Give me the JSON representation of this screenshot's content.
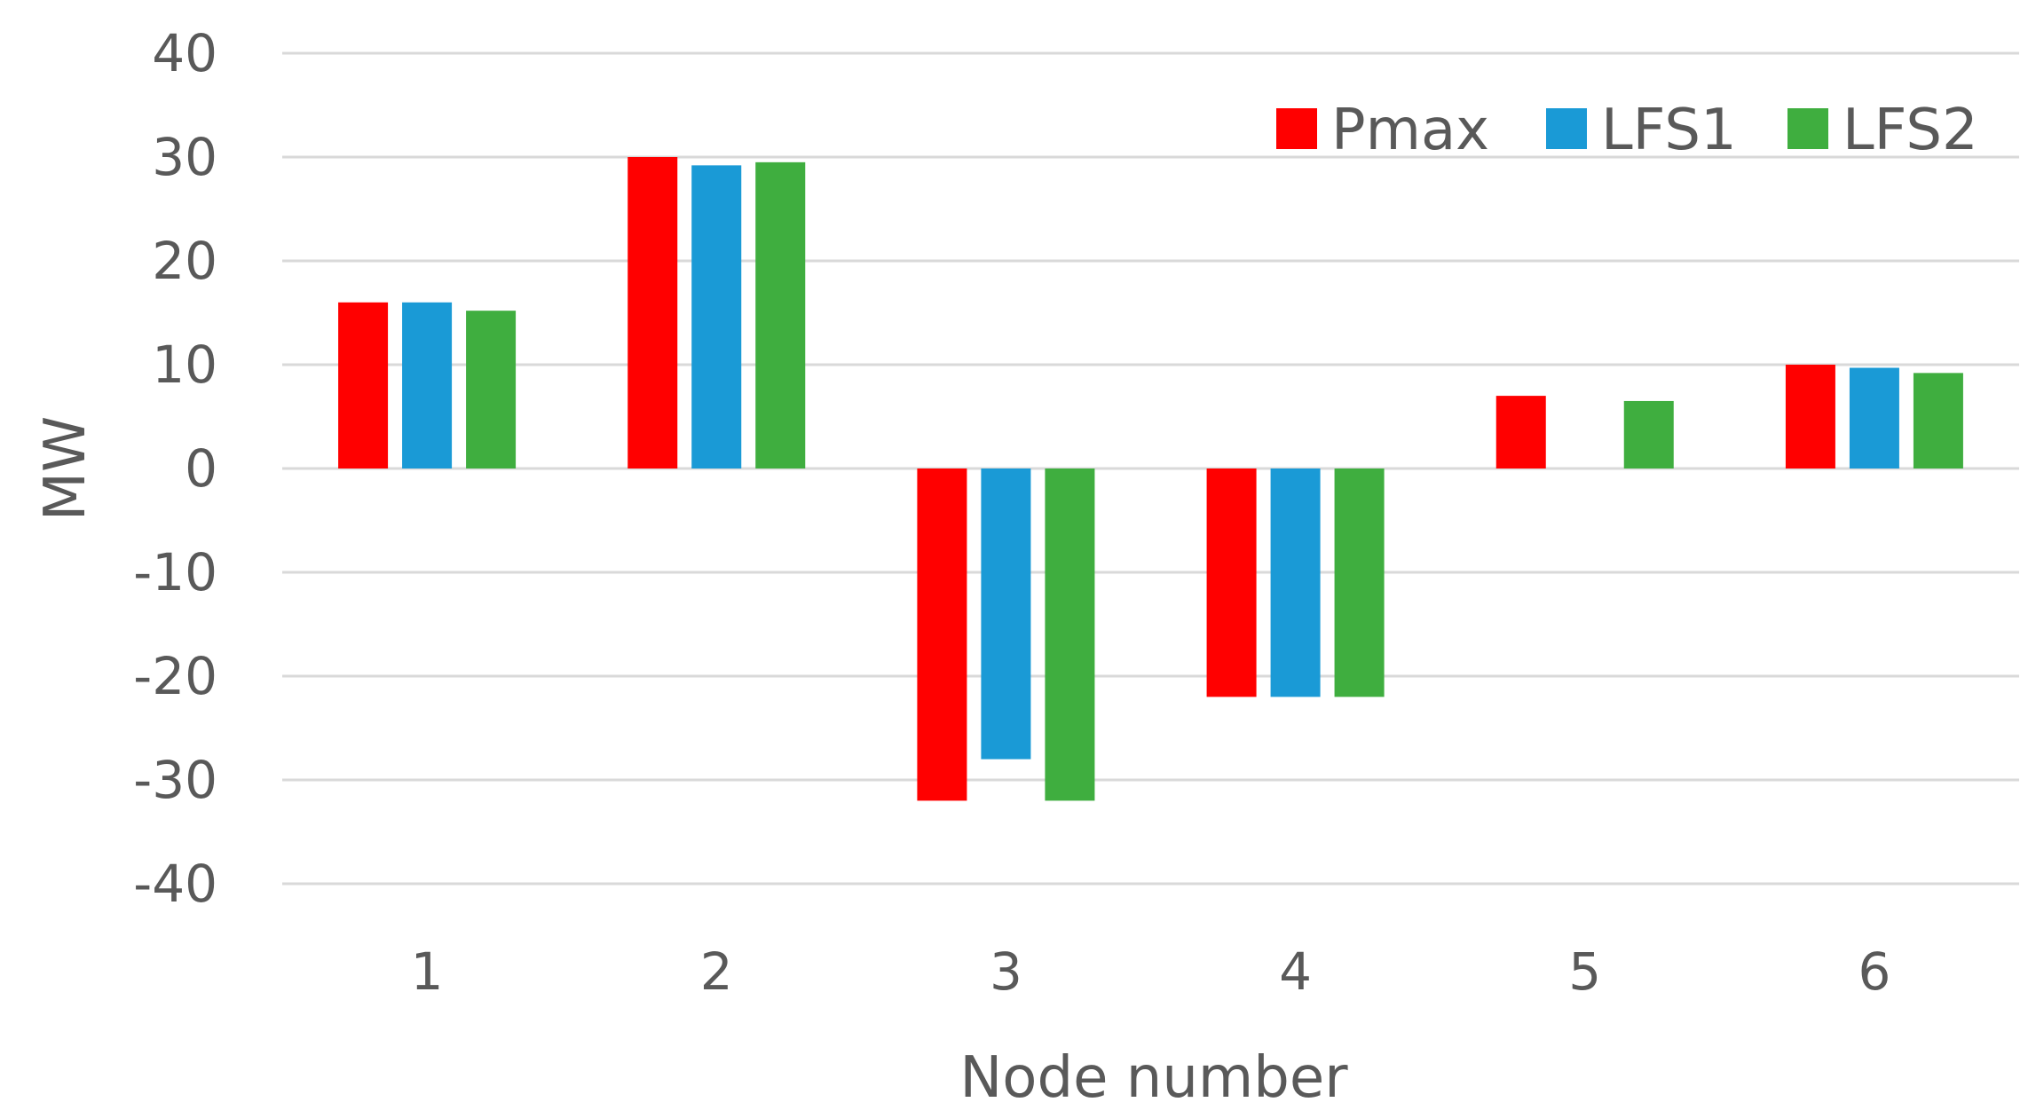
{
  "chart_data": {
    "type": "bar",
    "title": "",
    "xlabel": "Node number",
    "ylabel": "MW",
    "categories": [
      "1",
      "2",
      "3",
      "4",
      "5",
      "6"
    ],
    "series": [
      {
        "name": "Pmax",
        "color": "#ff0000",
        "values": [
          16,
          30,
          -32,
          -22,
          7,
          10
        ]
      },
      {
        "name": "LFS1",
        "color": "#1a9ad6",
        "values": [
          16,
          29.2,
          -28,
          -22,
          0,
          9.7
        ]
      },
      {
        "name": "LFS2",
        "color": "#3fae3f",
        "values": [
          15.2,
          29.5,
          -32,
          -22,
          6.5,
          9.2
        ]
      }
    ],
    "ylim": [
      -40,
      40
    ],
    "yticks": [
      "40",
      "30",
      "20",
      "10",
      "0",
      "-10",
      "-20",
      "-30",
      "-40"
    ],
    "ytick_values": [
      40,
      30,
      20,
      10,
      0,
      -10,
      -20,
      -30,
      -40
    ],
    "grid": true,
    "legend_position": "top-right"
  }
}
